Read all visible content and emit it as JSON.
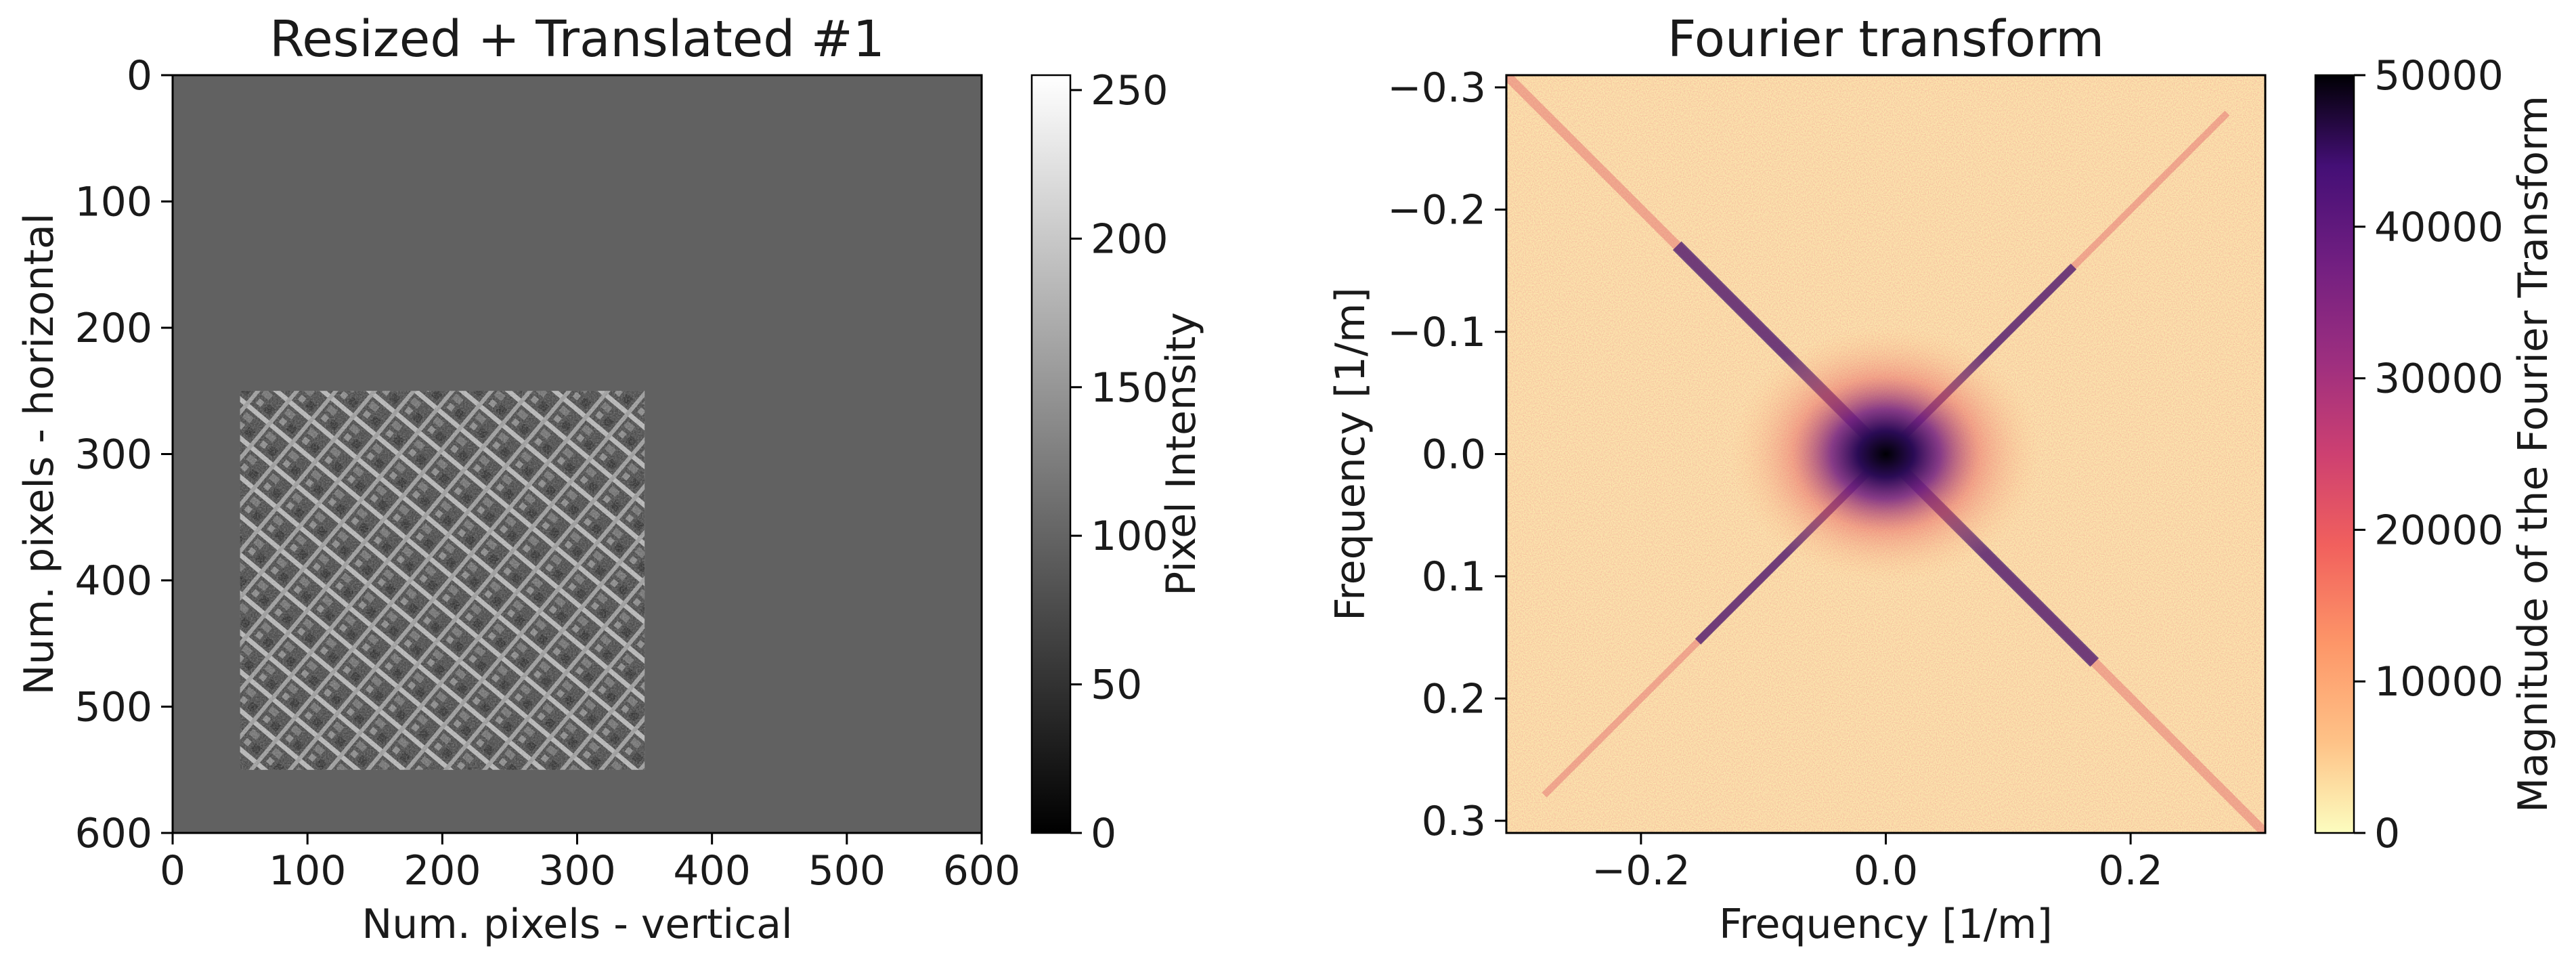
{
  "chart_data": [
    {
      "type": "heatmap",
      "title": "Resized + Translated #1",
      "xlabel": "Num. pixels - vertical",
      "ylabel": "Num. pixels - horizontal",
      "xlim": [
        0,
        600
      ],
      "ylim": [
        600,
        0
      ],
      "xticks": [
        0,
        100,
        200,
        300,
        400,
        500,
        600
      ],
      "yticks": [
        0,
        100,
        200,
        300,
        400,
        500,
        600
      ],
      "xtick_labels": [
        "0",
        "100",
        "200",
        "300",
        "400",
        "500",
        "600"
      ],
      "ytick_labels": [
        "0",
        "100",
        "200",
        "300",
        "400",
        "500",
        "600"
      ],
      "background_intensity": 97,
      "image_region": {
        "x": [
          50,
          350
        ],
        "y": [
          250,
          550
        ],
        "content": "grayscale aerial city image, diagonal street grid"
      },
      "colormap": "gray",
      "colorbar": {
        "label": "Pixel Intensity",
        "range": [
          0,
          255
        ],
        "ticks": [
          0,
          50,
          100,
          150,
          200,
          250
        ],
        "tick_labels": [
          "0",
          "50",
          "100",
          "150",
          "200",
          "250"
        ]
      }
    },
    {
      "type": "heatmap",
      "title": "Fourier transform",
      "xlabel": "Frequency [1/m]",
      "ylabel": "Frequency [1/m]",
      "xlim": [
        -0.31,
        0.31
      ],
      "ylim": [
        0.31,
        -0.31
      ],
      "xticks": [
        -0.2,
        0.0,
        0.2
      ],
      "yticks": [
        -0.3,
        -0.2,
        -0.1,
        0.0,
        0.1,
        0.2,
        0.3
      ],
      "xtick_labels": [
        "−0.2",
        "0.0",
        "0.2"
      ],
      "ytick_labels": [
        "−0.3",
        "−0.2",
        "−0.1",
        "0.0",
        "0.1",
        "0.2",
        "0.3"
      ],
      "structure": "bright center with two diagonal streaks forming an X",
      "colormap": "magma_r",
      "colorbar": {
        "label": "Magnitude of the Fourier Transform",
        "range": [
          0,
          50000
        ],
        "ticks": [
          0,
          10000,
          20000,
          30000,
          40000,
          50000
        ],
        "tick_labels": [
          "0",
          "10000",
          "20000",
          "30000",
          "40000",
          "50000"
        ]
      }
    }
  ],
  "colors": {
    "background_gray": "#616161",
    "axis": "#000000",
    "magma_light": "#fcf2c0",
    "magma_mid": "#f07060",
    "magma_dark": "#000004"
  }
}
